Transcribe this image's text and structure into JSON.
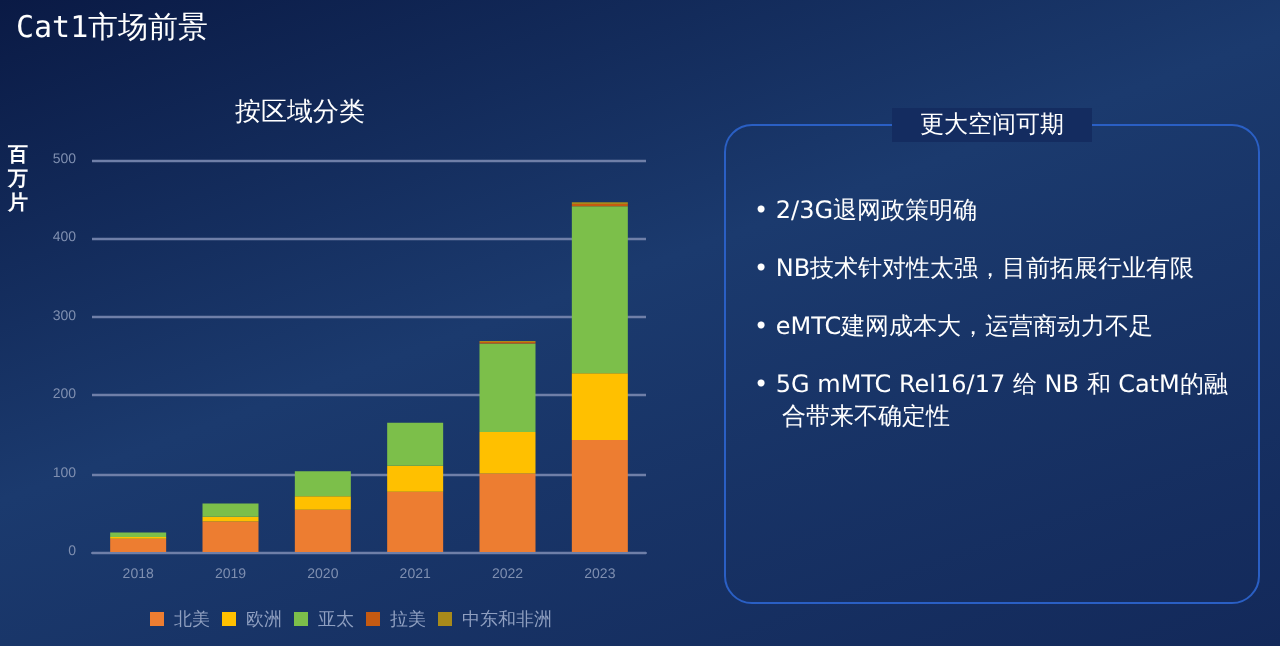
{
  "chart_data": [
    {
      "type": "bar",
      "title": "按区域分类",
      "ylabel": "百万片",
      "annotations": [
        "Cat1市场前景"
      ],
      "stacked": true,
      "grid": "y",
      "legend": "bottom",
      "categories": [
        "2018",
        "2019",
        "2020",
        "2021",
        "2022",
        "2023"
      ],
      "series": [
        {
          "name": "北美",
          "color": "#ed7d31",
          "values": [
            17,
            39,
            54,
            77,
            100,
            143
          ]
        },
        {
          "name": "欧洲",
          "color": "#ffc000",
          "values": [
            2,
            6,
            17,
            33,
            53,
            85
          ]
        },
        {
          "name": "亚太",
          "color": "#7cbf4a",
          "values": [
            6,
            17,
            32,
            55,
            113,
            213
          ]
        },
        {
          "name": "拉美",
          "color": "#c55a11",
          "values": [
            0,
            0,
            0,
            0,
            2,
            3
          ]
        },
        {
          "name": "中东和非洲",
          "color": "#a88a1a",
          "values": [
            0,
            0,
            0,
            0,
            1,
            2
          ]
        }
      ],
      "ylim": [
        0,
        500
      ],
      "yticks": [
        0,
        100,
        200,
        300,
        400,
        500
      ]
    },
    {
      "type": "other",
      "title": "更大空间可期",
      "annotations": [
        "• 2/3G退网政策明确",
        "• NB技术针对性太强，目前拓展行业有限",
        "• eMTC建网成本大，运营商动力不足",
        "• 5G mMTC Rel16/17 给 NB 和 CatM的融合带来不确定性"
      ]
    }
  ]
}
